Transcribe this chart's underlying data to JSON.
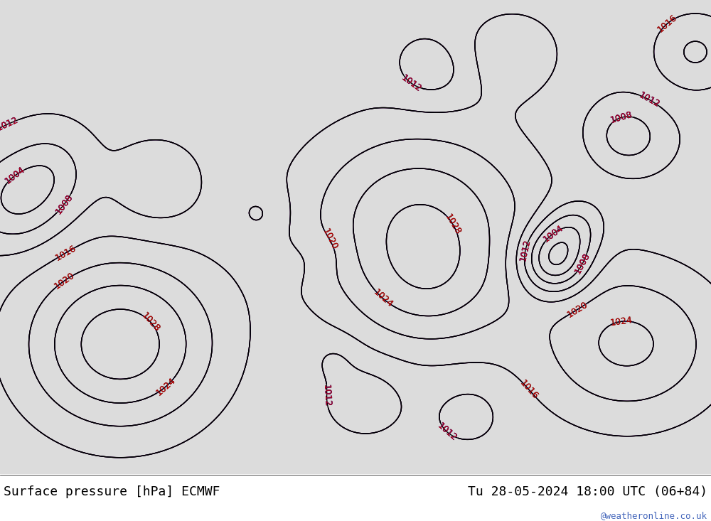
{
  "title_left": "Surface pressure [hPa] ECMWF",
  "title_right": "Tu 28-05-2024 18:00 UTC (06+84)",
  "watermark": "@weatheronline.co.uk",
  "title_fontsize": 13,
  "watermark_color": "#4466bb",
  "background_map_color": "#dcdcdc",
  "land_color": "#b8e8b0",
  "ocean_color": "#dcdcdc",
  "coastline_color": "#888888",
  "isobar_black_color": "#000000",
  "isobar_blue_color": "#0000cc",
  "isobar_red_color": "#cc0000",
  "label_fontsize": 8,
  "figsize": [
    10.0,
    7.33
  ],
  "dpi": 100
}
